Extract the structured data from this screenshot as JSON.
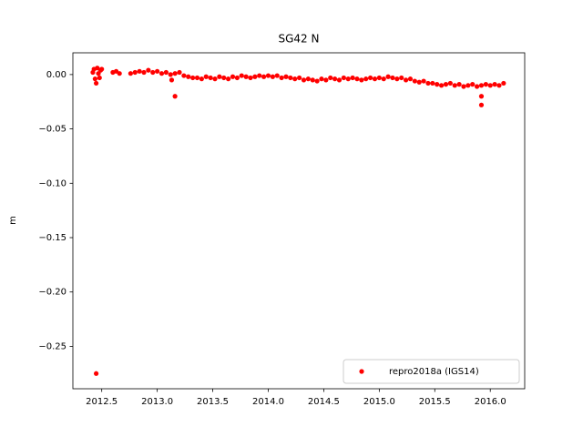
{
  "chart_data": {
    "type": "scatter",
    "title": "SG42 N",
    "y_label": "m",
    "x": [
      2012.42,
      2012.43,
      2012.44,
      2012.45,
      2012.45,
      2012.46,
      2012.47,
      2012.48,
      2012.49,
      2012.5,
      2012.6,
      2012.63,
      2012.66,
      2012.76,
      2012.8,
      2012.84,
      2012.88,
      2012.92,
      2012.96,
      2013.0,
      2013.04,
      2013.08,
      2013.12,
      2013.16,
      2013.2,
      2013.24,
      2013.28,
      2013.32,
      2013.36,
      2013.4,
      2013.44,
      2013.48,
      2013.52,
      2013.56,
      2013.6,
      2013.64,
      2013.68,
      2013.72,
      2013.76,
      2013.8,
      2013.84,
      2013.88,
      2013.92,
      2013.96,
      2014.0,
      2014.04,
      2014.08,
      2014.12,
      2014.16,
      2014.2,
      2014.24,
      2014.28,
      2014.32,
      2014.36,
      2014.4,
      2014.44,
      2014.48,
      2014.52,
      2014.56,
      2014.6,
      2014.64,
      2014.68,
      2014.72,
      2014.76,
      2014.8,
      2014.84,
      2014.88,
      2014.92,
      2014.96,
      2015.0,
      2015.04,
      2015.08,
      2015.12,
      2015.16,
      2015.2,
      2015.24,
      2015.28,
      2015.32,
      2015.36,
      2015.4,
      2015.44,
      2015.48,
      2015.52,
      2015.56,
      2015.6,
      2015.64,
      2015.68,
      2015.72,
      2015.76,
      2015.8,
      2015.84,
      2015.88,
      2015.92,
      2015.96,
      2016.0,
      2016.04,
      2016.08,
      2016.12,
      2013.13,
      2013.16,
      2015.92,
      2015.92
    ],
    "series": [
      {
        "name": "repro2018a (IGS14)",
        "color": "#ff0000",
        "values": [
          0.002,
          0.005,
          -0.004,
          -0.275,
          -0.008,
          0.006,
          0.001,
          -0.003,
          0.004,
          0.005,
          0.002,
          0.003,
          0.001,
          0.001,
          0.002,
          0.003,
          0.002,
          0.004,
          0.002,
          0.003,
          0.001,
          0.002,
          0.0,
          0.001,
          0.002,
          -0.001,
          -0.002,
          -0.003,
          -0.003,
          -0.004,
          -0.002,
          -0.003,
          -0.004,
          -0.002,
          -0.003,
          -0.004,
          -0.002,
          -0.003,
          -0.001,
          -0.002,
          -0.003,
          -0.002,
          -0.001,
          -0.002,
          -0.001,
          -0.002,
          -0.001,
          -0.003,
          -0.002,
          -0.003,
          -0.004,
          -0.003,
          -0.005,
          -0.004,
          -0.005,
          -0.006,
          -0.004,
          -0.005,
          -0.003,
          -0.004,
          -0.005,
          -0.003,
          -0.004,
          -0.003,
          -0.004,
          -0.005,
          -0.004,
          -0.003,
          -0.004,
          -0.003,
          -0.004,
          -0.002,
          -0.003,
          -0.004,
          -0.003,
          -0.005,
          -0.004,
          -0.006,
          -0.007,
          -0.006,
          -0.008,
          -0.008,
          -0.009,
          -0.01,
          -0.009,
          -0.008,
          -0.01,
          -0.009,
          -0.011,
          -0.01,
          -0.009,
          -0.011,
          -0.01,
          -0.009,
          -0.01,
          -0.009,
          -0.01,
          -0.008,
          -0.005,
          -0.02,
          -0.02,
          -0.028
        ]
      }
    ],
    "xlim": [
      2012.24,
      2016.31
    ],
    "ylim": [
      -0.289,
      0.02
    ],
    "xticks": [
      2012.5,
      {
        "value": 2013.0,
        "label": "2013.0"
      },
      2013.5,
      {
        "value": 2014.0,
        "label": "2014.0"
      },
      2014.5,
      {
        "value": 2015.0,
        "label": "2015.0"
      },
      2015.5,
      {
        "value": 2016.0,
        "label": "2016.0"
      }
    ],
    "yticks": [
      {
        "value": 0,
        "label": "0.00"
      },
      {
        "value": -0.05,
        "label": "−0.05"
      },
      {
        "value": -0.1,
        "label": "−0.10"
      },
      {
        "value": -0.15,
        "label": "−0.15"
      },
      {
        "value": -0.2,
        "label": "−0.20"
      },
      {
        "value": -0.25,
        "label": "−0.25"
      }
    ],
    "legend": "lower right",
    "grid": false
  }
}
